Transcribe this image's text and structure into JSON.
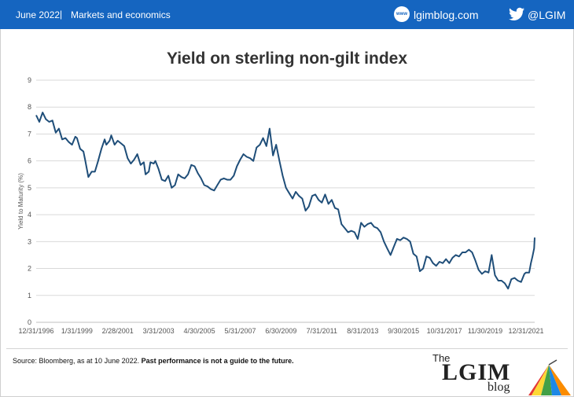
{
  "header": {
    "date": "June 2022",
    "separator": "|",
    "section": "Markets and economics",
    "site_icon_text": "www",
    "site": "lgimblog.com",
    "twitter_handle": "@LGIM"
  },
  "footer": {
    "source": "Source: Bloomberg, as at 10 June 2022.",
    "disclaimer": "Past performance is not a guide to the future."
  },
  "brand": {
    "the": "The",
    "lgim": "LGIM",
    "blog": "blog"
  },
  "colors": {
    "header_bg": "#1565c0",
    "series": "#1f4e79",
    "grid": "#d9d9d9"
  },
  "chart_data": {
    "type": "line",
    "title": "Yield on sterling non-gilt index",
    "xlabel": "",
    "ylabel": "Yield to Maturity (%)",
    "ylim": [
      0,
      9
    ],
    "yticks": [
      "0",
      "1",
      "2",
      "3",
      "4",
      "5",
      "6",
      "7",
      "8",
      "9"
    ],
    "xlim": [
      "1996-12-31",
      "2022-06-10"
    ],
    "xticks": [
      "12/31/1996",
      "1/31/1999",
      "2/28/2001",
      "3/31/2003",
      "4/30/2005",
      "5/31/2007",
      "6/30/2009",
      "7/31/2011",
      "8/31/2013",
      "9/30/2015",
      "10/31/2017",
      "11/30/2019",
      "12/31/2021"
    ],
    "grid": true,
    "legend": "none",
    "series": [
      {
        "values": [
          [
            "1996-12-31",
            7.7
          ],
          [
            "1997-02-28",
            7.45
          ],
          [
            "1997-04-30",
            7.8
          ],
          [
            "1997-06-30",
            7.55
          ],
          [
            "1997-08-31",
            7.45
          ],
          [
            "1997-10-31",
            7.5
          ],
          [
            "1997-12-31",
            7.05
          ],
          [
            "1998-02-28",
            7.2
          ],
          [
            "1998-04-30",
            6.8
          ],
          [
            "1998-06-30",
            6.85
          ],
          [
            "1998-08-31",
            6.7
          ],
          [
            "1998-10-31",
            6.6
          ],
          [
            "1998-12-31",
            6.9
          ],
          [
            "1999-01-31",
            6.85
          ],
          [
            "1999-03-31",
            6.45
          ],
          [
            "1999-05-31",
            6.35
          ],
          [
            "1999-06-30",
            6.05
          ],
          [
            "1999-08-31",
            5.4
          ],
          [
            "1999-10-31",
            5.6
          ],
          [
            "1999-12-31",
            5.6
          ],
          [
            "2000-02-29",
            6.0
          ],
          [
            "2000-04-30",
            6.45
          ],
          [
            "2000-06-30",
            6.8
          ],
          [
            "2000-07-31",
            6.6
          ],
          [
            "2000-09-30",
            6.75
          ],
          [
            "2000-10-31",
            6.95
          ],
          [
            "2000-12-31",
            6.6
          ],
          [
            "2001-02-28",
            6.75
          ],
          [
            "2001-04-30",
            6.65
          ],
          [
            "2001-06-30",
            6.55
          ],
          [
            "2001-08-31",
            6.1
          ],
          [
            "2001-10-31",
            5.9
          ],
          [
            "2001-12-31",
            6.05
          ],
          [
            "2002-02-28",
            6.25
          ],
          [
            "2002-04-30",
            5.85
          ],
          [
            "2002-06-30",
            5.95
          ],
          [
            "2002-07-31",
            5.5
          ],
          [
            "2002-09-30",
            5.6
          ],
          [
            "2002-10-31",
            5.95
          ],
          [
            "2002-12-31",
            5.9
          ],
          [
            "2003-01-31",
            6.0
          ],
          [
            "2003-03-31",
            5.7
          ],
          [
            "2003-05-31",
            5.3
          ],
          [
            "2003-07-31",
            5.25
          ],
          [
            "2003-09-30",
            5.45
          ],
          [
            "2003-11-30",
            5.0
          ],
          [
            "2004-01-31",
            5.1
          ],
          [
            "2004-03-31",
            5.5
          ],
          [
            "2004-05-31",
            5.4
          ],
          [
            "2004-07-31",
            5.35
          ],
          [
            "2004-09-30",
            5.5
          ],
          [
            "2004-11-30",
            5.85
          ],
          [
            "2005-01-31",
            5.8
          ],
          [
            "2005-03-31",
            5.55
          ],
          [
            "2005-05-31",
            5.35
          ],
          [
            "2005-07-31",
            5.1
          ],
          [
            "2005-09-30",
            5.05
          ],
          [
            "2005-11-30",
            4.95
          ],
          [
            "2006-01-31",
            4.9
          ],
          [
            "2006-03-31",
            5.1
          ],
          [
            "2006-05-31",
            5.3
          ],
          [
            "2006-07-31",
            5.35
          ],
          [
            "2006-09-30",
            5.3
          ],
          [
            "2006-11-30",
            5.3
          ],
          [
            "2007-01-31",
            5.45
          ],
          [
            "2007-03-31",
            5.8
          ],
          [
            "2007-05-31",
            6.05
          ],
          [
            "2007-07-31",
            6.25
          ],
          [
            "2007-09-30",
            6.15
          ],
          [
            "2007-11-30",
            6.1
          ],
          [
            "2008-01-31",
            6.0
          ],
          [
            "2008-03-31",
            6.5
          ],
          [
            "2008-05-31",
            6.6
          ],
          [
            "2008-07-31",
            6.85
          ],
          [
            "2008-09-30",
            6.55
          ],
          [
            "2008-11-30",
            7.2
          ],
          [
            "2009-01-31",
            6.2
          ],
          [
            "2009-03-31",
            6.6
          ],
          [
            "2009-05-31",
            6.0
          ],
          [
            "2009-07-31",
            5.45
          ],
          [
            "2009-09-30",
            5.0
          ],
          [
            "2009-11-30",
            4.8
          ],
          [
            "2010-01-31",
            4.6
          ],
          [
            "2010-03-31",
            4.85
          ],
          [
            "2010-05-31",
            4.7
          ],
          [
            "2010-07-31",
            4.6
          ],
          [
            "2010-09-30",
            4.15
          ],
          [
            "2010-11-30",
            4.3
          ],
          [
            "2011-01-31",
            4.7
          ],
          [
            "2011-03-31",
            4.75
          ],
          [
            "2011-05-31",
            4.55
          ],
          [
            "2011-07-31",
            4.45
          ],
          [
            "2011-09-30",
            4.75
          ],
          [
            "2011-11-30",
            4.4
          ],
          [
            "2012-01-31",
            4.55
          ],
          [
            "2012-03-31",
            4.25
          ],
          [
            "2012-05-31",
            4.2
          ],
          [
            "2012-07-31",
            3.65
          ],
          [
            "2012-09-30",
            3.5
          ],
          [
            "2012-11-30",
            3.35
          ],
          [
            "2013-01-31",
            3.4
          ],
          [
            "2013-03-31",
            3.35
          ],
          [
            "2013-05-31",
            3.1
          ],
          [
            "2013-07-31",
            3.7
          ],
          [
            "2013-09-30",
            3.55
          ],
          [
            "2013-11-30",
            3.65
          ],
          [
            "2014-01-31",
            3.7
          ],
          [
            "2014-03-31",
            3.55
          ],
          [
            "2014-05-31",
            3.5
          ],
          [
            "2014-07-31",
            3.35
          ],
          [
            "2014-09-30",
            3.0
          ],
          [
            "2014-11-30",
            2.75
          ],
          [
            "2015-01-31",
            2.5
          ],
          [
            "2015-03-31",
            2.8
          ],
          [
            "2015-05-31",
            3.1
          ],
          [
            "2015-07-31",
            3.05
          ],
          [
            "2015-09-30",
            3.15
          ],
          [
            "2015-11-30",
            3.1
          ],
          [
            "2016-01-31",
            3.0
          ],
          [
            "2016-03-31",
            2.55
          ],
          [
            "2016-05-31",
            2.45
          ],
          [
            "2016-07-31",
            1.9
          ],
          [
            "2016-09-30",
            2.0
          ],
          [
            "2016-11-30",
            2.45
          ],
          [
            "2017-01-31",
            2.4
          ],
          [
            "2017-03-31",
            2.2
          ],
          [
            "2017-05-31",
            2.1
          ],
          [
            "2017-07-31",
            2.25
          ],
          [
            "2017-09-30",
            2.2
          ],
          [
            "2017-11-30",
            2.35
          ],
          [
            "2018-01-31",
            2.2
          ],
          [
            "2018-03-31",
            2.4
          ],
          [
            "2018-05-31",
            2.5
          ],
          [
            "2018-07-31",
            2.45
          ],
          [
            "2018-09-30",
            2.6
          ],
          [
            "2018-11-30",
            2.6
          ],
          [
            "2019-01-31",
            2.7
          ],
          [
            "2019-03-31",
            2.6
          ],
          [
            "2019-05-31",
            2.3
          ],
          [
            "2019-07-31",
            1.95
          ],
          [
            "2019-09-30",
            1.8
          ],
          [
            "2019-11-30",
            1.9
          ],
          [
            "2020-01-31",
            1.85
          ],
          [
            "2020-03-31",
            2.5
          ],
          [
            "2020-05-31",
            1.75
          ],
          [
            "2020-07-31",
            1.55
          ],
          [
            "2020-09-30",
            1.55
          ],
          [
            "2020-11-30",
            1.45
          ],
          [
            "2021-01-31",
            1.25
          ],
          [
            "2021-03-31",
            1.6
          ],
          [
            "2021-05-31",
            1.65
          ],
          [
            "2021-07-31",
            1.55
          ],
          [
            "2021-09-30",
            1.5
          ],
          [
            "2021-11-30",
            1.8
          ],
          [
            "2021-12-31",
            1.85
          ],
          [
            "2022-02-28",
            1.85
          ],
          [
            "2022-03-31",
            2.2
          ],
          [
            "2022-04-30",
            2.45
          ],
          [
            "2022-05-31",
            2.75
          ],
          [
            "2022-06-10",
            3.15
          ]
        ]
      }
    ]
  }
}
